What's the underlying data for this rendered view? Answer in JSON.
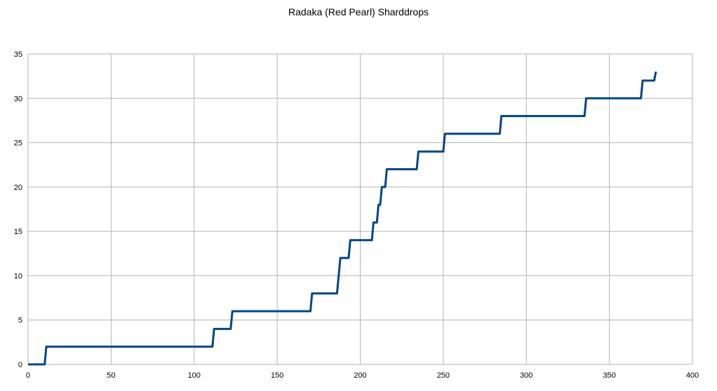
{
  "chart_data": {
    "type": "line",
    "title": "Radaka (Red Pearl) Sharddrops",
    "xlabel": "",
    "ylabel": "",
    "xlim": [
      0,
      400
    ],
    "ylim": [
      0,
      35
    ],
    "xticks": [
      0,
      50,
      100,
      150,
      200,
      250,
      300,
      350,
      400
    ],
    "yticks": [
      0,
      5,
      10,
      15,
      20,
      25,
      30,
      35
    ],
    "grid": true,
    "legend": "none",
    "series": [
      {
        "color": "#004586",
        "points": [
          [
            0,
            0
          ],
          [
            10,
            0
          ],
          [
            11,
            2
          ],
          [
            111,
            2
          ],
          [
            112,
            4
          ],
          [
            122,
            4
          ],
          [
            123,
            6
          ],
          [
            170,
            6
          ],
          [
            171,
            8
          ],
          [
            186,
            8
          ],
          [
            188,
            12
          ],
          [
            193,
            12
          ],
          [
            194,
            14
          ],
          [
            207,
            14
          ],
          [
            208,
            16
          ],
          [
            210,
            16
          ],
          [
            211,
            18
          ],
          [
            212,
            18
          ],
          [
            213,
            20
          ],
          [
            215,
            20
          ],
          [
            216,
            22
          ],
          [
            234,
            22
          ],
          [
            235,
            24
          ],
          [
            250,
            24
          ],
          [
            251,
            26
          ],
          [
            284,
            26
          ],
          [
            285,
            28
          ],
          [
            335,
            28
          ],
          [
            336,
            30
          ],
          [
            369,
            30
          ],
          [
            370,
            32
          ],
          [
            377,
            32
          ],
          [
            378,
            33
          ]
        ]
      }
    ]
  }
}
